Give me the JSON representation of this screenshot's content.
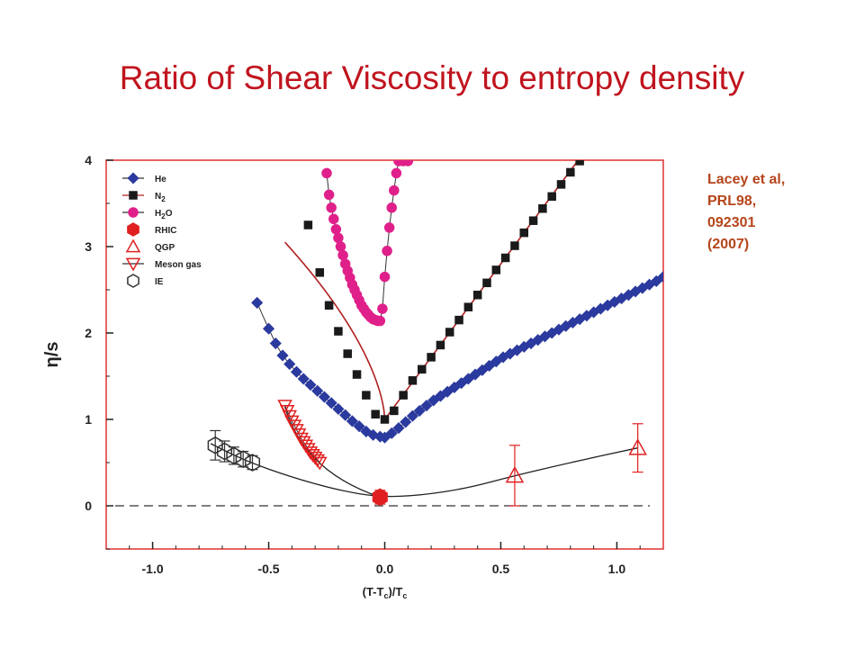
{
  "title": "Ratio of Shear Viscosity to entropy density",
  "citation": [
    "Lacey et al,",
    "PRL98,",
    "092301",
    "(2007)"
  ],
  "colors": {
    "title": "#c0141e",
    "citation": "#b5451b",
    "frame": "#e03030",
    "he": "#2b3a9e",
    "n2": "#1a1a1a",
    "h2o": "#e0208a",
    "rhic": "#e02020",
    "qgp": "#e02020",
    "meson": "#e02020",
    "ie": "#333333",
    "curve_n2": "#b02020"
  },
  "chart_data": {
    "type": "scatter",
    "xlabel": "(T-T_c)/T_c",
    "ylabel": "η/s",
    "xlim": [
      -1.2,
      1.2
    ],
    "ylim": [
      -0.5,
      4.0
    ],
    "xticks": [
      -1.0,
      -0.5,
      0.0,
      0.5,
      1.0
    ],
    "xtick_labels": [
      "-1.0",
      "-0.5",
      "0.0",
      "0.5",
      "1.0"
    ],
    "yticks": [
      0,
      1,
      2,
      3,
      4
    ],
    "ytick_labels": [
      "0",
      "1",
      "2",
      "3",
      "4"
    ],
    "legend_position": "top-left",
    "reference_line_y": 0,
    "series": [
      {
        "name": "He",
        "marker": "diamond",
        "x": [
          -0.55,
          -0.5,
          -0.47,
          -0.44,
          -0.41,
          -0.38,
          -0.35,
          -0.32,
          -0.29,
          -0.26,
          -0.23,
          -0.2,
          -0.17,
          -0.14,
          -0.11,
          -0.08,
          -0.05,
          -0.02,
          0.0,
          0.03,
          0.06,
          0.09,
          0.12,
          0.15,
          0.18,
          0.21,
          0.24,
          0.27,
          0.3,
          0.33,
          0.36,
          0.39,
          0.42,
          0.45,
          0.48,
          0.51,
          0.54,
          0.57,
          0.6,
          0.63,
          0.66,
          0.69,
          0.72,
          0.75,
          0.78,
          0.81,
          0.84,
          0.87,
          0.9,
          0.93,
          0.96,
          0.99,
          1.02,
          1.05,
          1.08,
          1.11,
          1.14,
          1.17,
          1.2
        ],
        "y": [
          2.35,
          2.05,
          1.88,
          1.74,
          1.64,
          1.55,
          1.47,
          1.4,
          1.33,
          1.26,
          1.19,
          1.12,
          1.05,
          0.98,
          0.92,
          0.86,
          0.82,
          0.8,
          0.79,
          0.84,
          0.9,
          0.97,
          1.04,
          1.1,
          1.16,
          1.22,
          1.27,
          1.32,
          1.37,
          1.42,
          1.47,
          1.52,
          1.57,
          1.62,
          1.67,
          1.72,
          1.76,
          1.8,
          1.84,
          1.88,
          1.92,
          1.96,
          2.0,
          2.04,
          2.08,
          2.12,
          2.16,
          2.2,
          2.24,
          2.28,
          2.32,
          2.36,
          2.4,
          2.44,
          2.48,
          2.52,
          2.56,
          2.6,
          2.65
        ]
      },
      {
        "name": "N2",
        "marker": "square",
        "x": [
          -0.33,
          -0.28,
          -0.24,
          -0.2,
          -0.16,
          -0.12,
          -0.08,
          -0.04,
          0.0,
          0.04,
          0.08,
          0.12,
          0.16,
          0.2,
          0.24,
          0.28,
          0.32,
          0.36,
          0.4,
          0.44,
          0.48,
          0.52,
          0.56,
          0.6,
          0.64,
          0.68,
          0.72,
          0.76,
          0.8,
          0.84
        ],
        "y": [
          3.25,
          2.7,
          2.32,
          2.02,
          1.76,
          1.52,
          1.28,
          1.06,
          1.0,
          1.1,
          1.28,
          1.45,
          1.58,
          1.72,
          1.86,
          2.01,
          2.15,
          2.3,
          2.44,
          2.58,
          2.73,
          2.87,
          3.01,
          3.16,
          3.3,
          3.44,
          3.58,
          3.72,
          3.86,
          3.99
        ]
      },
      {
        "name": "H₂O",
        "marker": "circle",
        "x": [
          -0.25,
          -0.24,
          -0.23,
          -0.22,
          -0.21,
          -0.2,
          -0.19,
          -0.18,
          -0.17,
          -0.16,
          -0.15,
          -0.14,
          -0.13,
          -0.12,
          -0.11,
          -0.1,
          -0.09,
          -0.08,
          -0.07,
          -0.06,
          -0.05,
          -0.04,
          -0.03,
          -0.02,
          -0.01,
          0.0,
          0.01,
          0.02,
          0.03,
          0.04,
          0.05,
          0.06,
          0.08,
          0.1
        ],
        "y": [
          3.85,
          3.6,
          3.45,
          3.32,
          3.2,
          3.1,
          3.0,
          2.9,
          2.8,
          2.72,
          2.64,
          2.56,
          2.5,
          2.44,
          2.38,
          2.32,
          2.28,
          2.24,
          2.21,
          2.18,
          2.16,
          2.15,
          2.14,
          2.14,
          2.28,
          2.65,
          2.95,
          3.22,
          3.45,
          3.65,
          3.85,
          3.99,
          3.99,
          3.99
        ]
      },
      {
        "name": "RHIC",
        "marker": "hexagon-filled",
        "x": [
          -0.02
        ],
        "y": [
          0.1
        ],
        "yerr": [
          0.08
        ]
      },
      {
        "name": "QGP",
        "marker": "triangle-up",
        "x": [
          0.56,
          1.09
        ],
        "y": [
          0.35,
          0.67
        ],
        "yerr": [
          0.35,
          0.28
        ]
      },
      {
        "name": "Meson gas",
        "marker": "triangle-down",
        "x": [
          -0.43,
          -0.42,
          -0.41,
          -0.4,
          -0.39,
          -0.38,
          -0.37,
          -0.36,
          -0.35,
          -0.34,
          -0.33,
          -0.32,
          -0.31,
          -0.3,
          -0.29,
          -0.28
        ],
        "y": [
          1.16,
          1.1,
          1.04,
          0.98,
          0.93,
          0.88,
          0.83,
          0.78,
          0.74,
          0.7,
          0.66,
          0.62,
          0.59,
          0.56,
          0.53,
          0.5
        ]
      },
      {
        "name": "IE",
        "marker": "hexagon-open",
        "x": [
          -0.73,
          -0.69,
          -0.65,
          -0.61,
          -0.57
        ],
        "y": [
          0.7,
          0.63,
          0.58,
          0.54,
          0.5
        ],
        "yerr": [
          0.17,
          0.12,
          0.1,
          0.09,
          0.08
        ]
      }
    ]
  }
}
